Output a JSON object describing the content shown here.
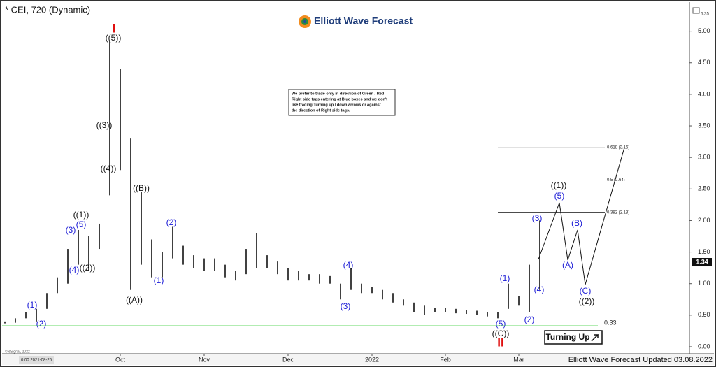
{
  "header": {
    "title": "* CEI, 720 (Dynamic)",
    "logo": "Elliott Wave Forecast",
    "corner_value": "5.35"
  },
  "note": [
    "We prefer to trade only in direction of Green / Red",
    "Right side tags entering at Blue boxes and we don't",
    "like trading Turning up / down arrows or against",
    "the direction of Right side tags."
  ],
  "footer": "Elliott Wave Forecast Updated 03.08.2022",
  "copyright": "© eSignal, 2022",
  "x_start_label": "0:00 2021-08-26",
  "turning_label": "Turning Up",
  "annotations": [
    "I",
    "((5))",
    "((3))",
    "((4))",
    "((1))",
    "(5)",
    "(3)",
    "(4)",
    "((2))",
    "(1)",
    "(2)",
    "((B))",
    "((A))",
    "(1)",
    "(2)",
    "(4)",
    "(3)",
    "(1)",
    "(2)",
    "(5)",
    "((C))",
    "II",
    "(3)",
    "(4)",
    "((1))",
    "(5)",
    "(B)",
    "(A)",
    "(C)",
    "((2))"
  ],
  "chart_data": {
    "type": "hilo",
    "color": "#111111",
    "categories": [
      null,
      null,
      null,
      null,
      null,
      null,
      null,
      null,
      null,
      null,
      null,
      "Oct",
      null,
      null,
      null,
      null,
      null,
      null,
      null,
      "Nov",
      null,
      null,
      null,
      null,
      null,
      null,
      null,
      "Dec",
      null,
      null,
      null,
      null,
      null,
      null,
      null,
      "2022",
      null,
      null,
      null,
      null,
      null,
      null,
      "Feb",
      null,
      null,
      null,
      null,
      null,
      null,
      "Mar",
      null,
      null
    ],
    "high": [
      0.4,
      0.45,
      0.55,
      0.6,
      0.85,
      1.1,
      1.55,
      1.85,
      1.75,
      1.95,
      4.85,
      4.4,
      3.3,
      2.45,
      1.7,
      1.5,
      1.9,
      1.6,
      1.45,
      1.4,
      1.4,
      1.3,
      1.2,
      1.55,
      1.8,
      1.45,
      1.35,
      1.25,
      1.2,
      1.15,
      1.15,
      1.12,
      1.0,
      1.25,
      1.0,
      0.95,
      0.9,
      0.85,
      0.75,
      0.7,
      0.65,
      0.62,
      0.62,
      0.6,
      0.58,
      0.57,
      0.55,
      0.55,
      1.0,
      0.8,
      1.3,
      2.0
    ],
    "low": [
      0.37,
      0.38,
      0.45,
      0.4,
      0.6,
      0.85,
      1.0,
      1.3,
      1.2,
      1.55,
      2.4,
      2.8,
      0.9,
      1.3,
      1.1,
      1.1,
      1.4,
      1.3,
      1.25,
      1.2,
      1.2,
      1.1,
      1.05,
      1.15,
      1.25,
      1.25,
      1.15,
      1.05,
      1.05,
      1.05,
      1.0,
      1.0,
      0.75,
      0.9,
      0.85,
      0.85,
      0.75,
      0.7,
      0.65,
      0.55,
      0.5,
      0.55,
      0.55,
      0.53,
      0.52,
      0.5,
      0.48,
      0.45,
      0.6,
      0.65,
      0.55,
      0.9
    ],
    "ylim": [
      -0.1,
      5.45
    ],
    "yticks": [
      {
        "value": 0,
        "label": "0.00"
      },
      {
        "value": 0.5,
        "label": "0.50"
      },
      {
        "value": 1,
        "label": "1.00"
      },
      {
        "value": 1.5,
        "label": "1.50"
      },
      {
        "value": 2,
        "label": "2.00"
      },
      {
        "value": 2.5,
        "label": "2.50"
      },
      {
        "value": 3,
        "label": "3.00"
      },
      {
        "value": 3.5,
        "label": "3.50"
      },
      {
        "value": 4,
        "label": "4.00"
      },
      {
        "value": 4.5,
        "label": "4.50"
      },
      {
        "value": 5,
        "label": "5.00"
      }
    ],
    "fib_levels": [
      {
        "value": 3.16,
        "label": "0.618 (3.16)"
      },
      {
        "value": 2.64,
        "label": "0.5 (2.64)"
      },
      {
        "value": 2.13,
        "label": "0.382 (2.13)"
      }
    ],
    "support": {
      "value": 0.33,
      "label": "0.33",
      "color": "#33cc33"
    },
    "last_price": {
      "value": 1.34,
      "label": "1.34"
    }
  }
}
